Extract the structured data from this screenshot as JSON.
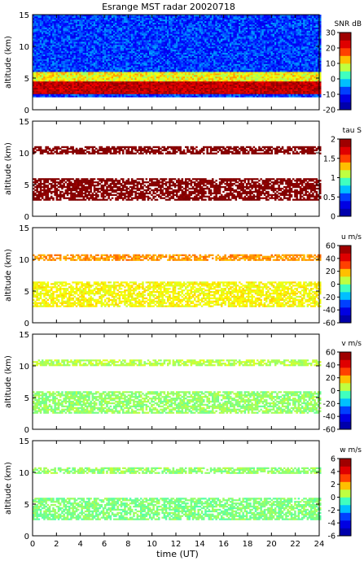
{
  "title": "Esrange MST radar 20020718",
  "x_axis": {
    "label": "time (UT)",
    "range": [
      0,
      24
    ],
    "ticks": [
      0,
      2,
      4,
      6,
      8,
      10,
      12,
      14,
      16,
      18,
      20,
      22,
      24
    ]
  },
  "chart_data": [
    {
      "type": "heatmap",
      "title": "Esrange MST radar 20020718",
      "ylabel": "altitude (km)",
      "xlim": [
        0,
        24
      ],
      "ylim": [
        0,
        15
      ],
      "yticks": [
        0,
        5,
        10,
        15
      ],
      "colorbar": {
        "label": "SNR dB",
        "range": [
          -20,
          30
        ],
        "ticks": [
          30,
          20,
          10,
          0,
          -10,
          -20
        ]
      },
      "coverage_altitude_km": [
        2,
        15
      ],
      "layers": [
        {
          "altitude_km": [
            2.5,
            4.5
          ],
          "level": 25
        },
        {
          "altitude_km": [
            4.5,
            6
          ],
          "level": 10
        },
        {
          "altitude_km": [
            6,
            15
          ],
          "level": -8
        }
      ]
    },
    {
      "type": "heatmap",
      "ylabel": "altitude (km)",
      "xlim": [
        0,
        24
      ],
      "ylim": [
        0,
        15
      ],
      "yticks": [
        0,
        5,
        10,
        15
      ],
      "colorbar": {
        "label": "tau S",
        "range": [
          0,
          2
        ],
        "ticks": [
          2,
          1.5,
          1,
          0.5,
          0
        ]
      },
      "layers": [
        {
          "altitude_km": [
            9.8,
            11
          ],
          "level": 2
        },
        {
          "altitude_km": [
            2.5,
            6
          ],
          "level": 2
        }
      ]
    },
    {
      "type": "heatmap",
      "ylabel": "altitude (km)",
      "xlim": [
        0,
        24
      ],
      "ylim": [
        0,
        15
      ],
      "yticks": [
        0,
        5,
        10,
        15
      ],
      "colorbar": {
        "label": "u m/s",
        "range": [
          -60,
          60
        ],
        "ticks": [
          60,
          40,
          20,
          0,
          -20,
          -40,
          -60
        ]
      },
      "layers": [
        {
          "altitude_km": [
            9.8,
            10.8
          ],
          "level": 22
        },
        {
          "altitude_km": [
            2.5,
            6.5
          ],
          "level": 12
        }
      ]
    },
    {
      "type": "heatmap",
      "ylabel": "altitude (km)",
      "xlim": [
        0,
        24
      ],
      "ylim": [
        0,
        15
      ],
      "yticks": [
        0,
        5,
        10,
        15
      ],
      "colorbar": {
        "label": "v m/s",
        "range": [
          -60,
          60
        ],
        "ticks": [
          60,
          40,
          20,
          0,
          -20,
          -40,
          -60
        ]
      },
      "layers": [
        {
          "altitude_km": [
            10,
            11
          ],
          "level": 5
        },
        {
          "altitude_km": [
            2.5,
            6
          ],
          "level": 2
        }
      ]
    },
    {
      "type": "heatmap",
      "xlabel": "time (UT)",
      "ylabel": "altitude (km)",
      "xlim": [
        0,
        24
      ],
      "ylim": [
        0,
        15
      ],
      "yticks": [
        0,
        5,
        10,
        15
      ],
      "colorbar": {
        "label": "w m/s",
        "range": [
          -6,
          6
        ],
        "ticks": [
          6,
          4,
          2,
          0,
          -2,
          -4,
          -6
        ]
      },
      "layers": [
        {
          "altitude_km": [
            9.8,
            10.8
          ],
          "level": 0.2
        },
        {
          "altitude_km": [
            2.5,
            6
          ],
          "level": 0
        }
      ]
    }
  ]
}
